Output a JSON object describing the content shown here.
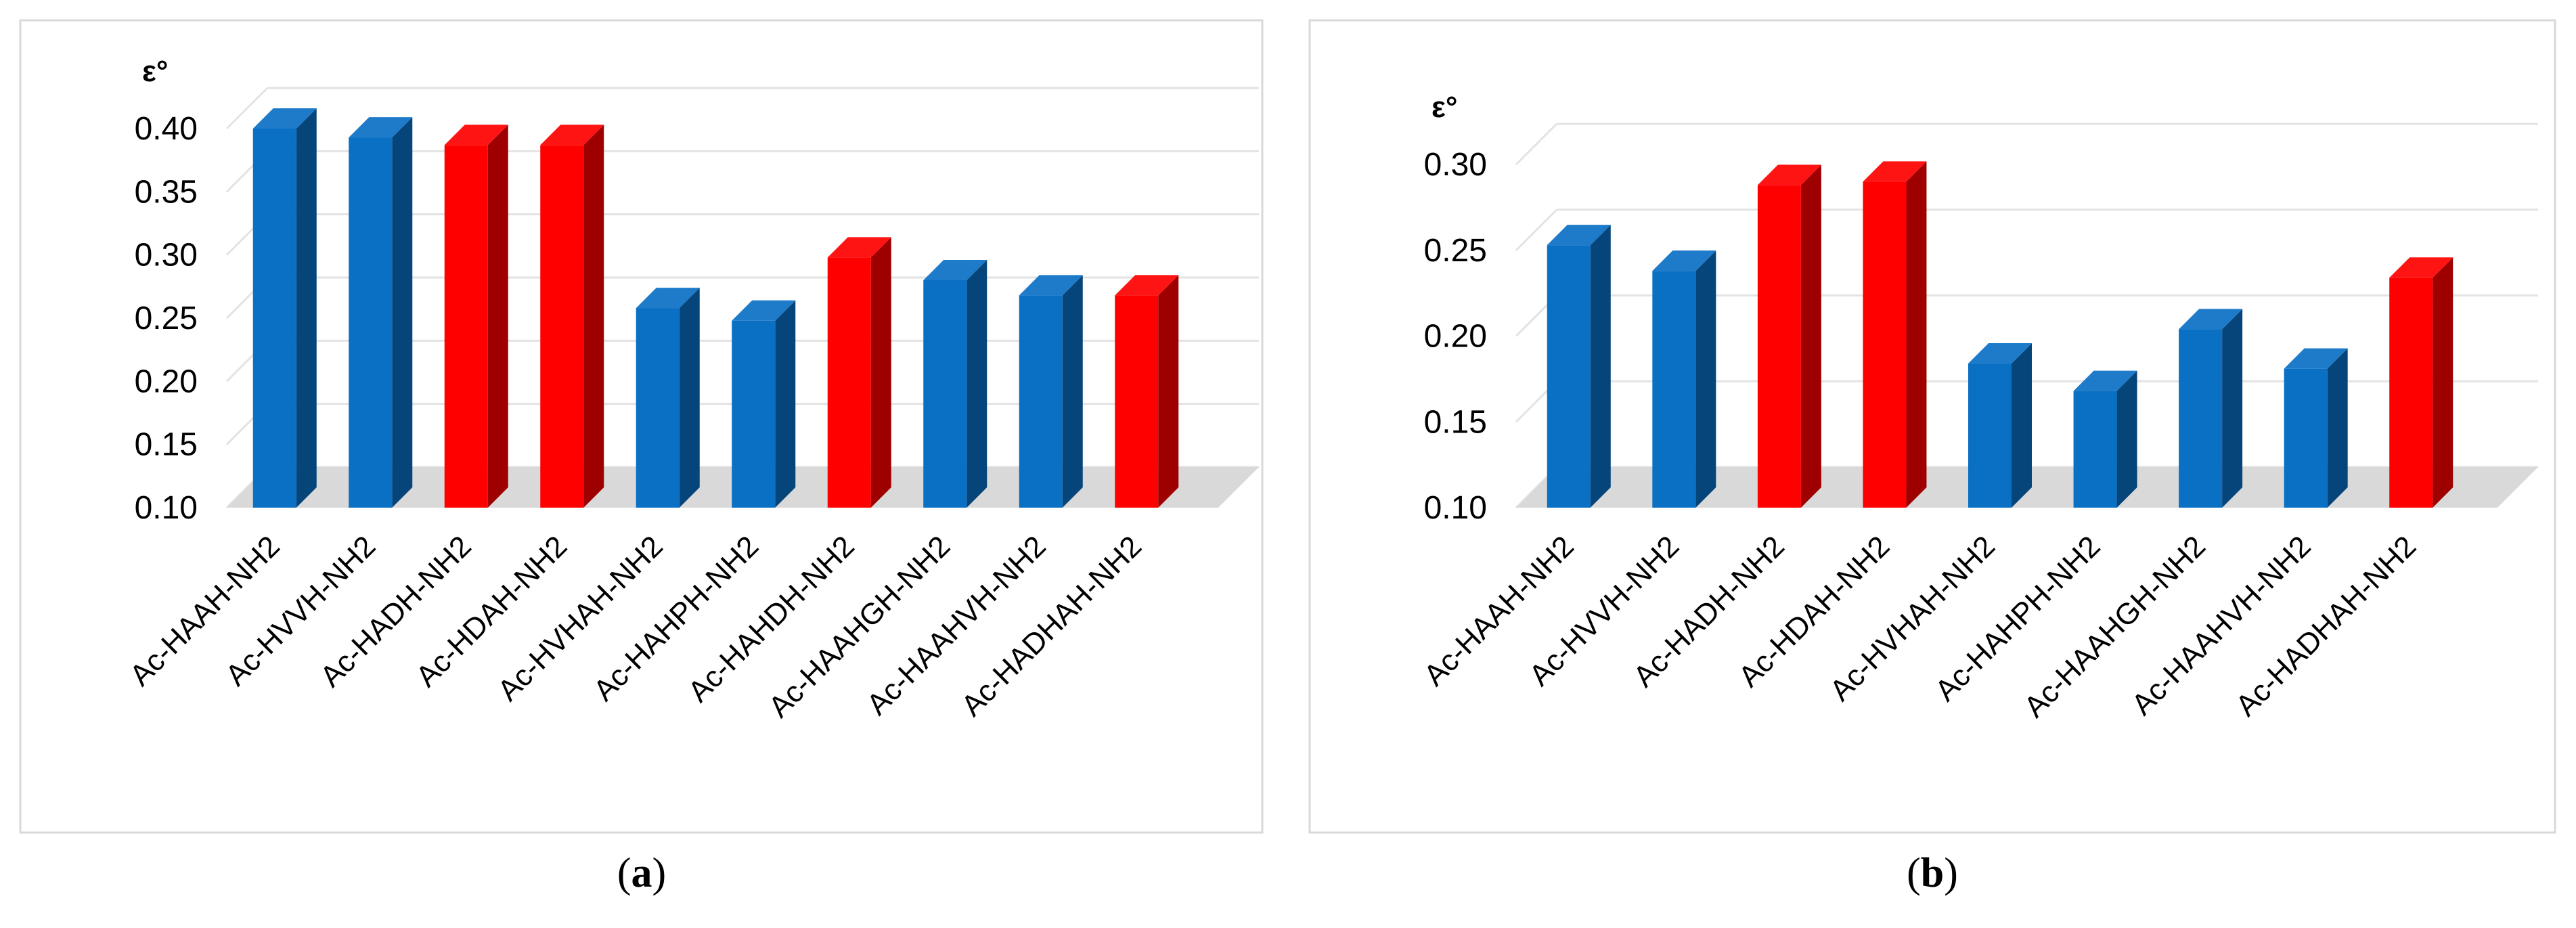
{
  "colors": {
    "blue": "#0a70c4",
    "red": "#ff0000"
  },
  "chart_data": [
    {
      "type": "bar",
      "panel_label": "a",
      "ylabel": "ε°",
      "ylim": [
        0.1,
        0.4
      ],
      "yticks": [
        "0.10",
        "0.15",
        "0.20",
        "0.25",
        "0.30",
        "0.35",
        "0.40"
      ],
      "grid": true,
      "categories": [
        "Ac-HAAH-NH2",
        "Ac-HVVH-NH2",
        "Ac-HADH-NH2",
        "Ac-HDAH-NH2",
        "Ac-HVHAH-NH2",
        "Ac-HAHPH-NH2",
        "Ac-HAHDH-NH2",
        "Ac-HAAHGH-NH2",
        "Ac-HAAHVH-NH2",
        "Ac-HADHAH-NH2"
      ],
      "values": [
        0.4,
        0.393,
        0.387,
        0.387,
        0.258,
        0.248,
        0.298,
        0.28,
        0.268,
        0.268
      ],
      "bar_colors": [
        "blue",
        "blue",
        "red",
        "red",
        "blue",
        "blue",
        "red",
        "blue",
        "blue",
        "red"
      ]
    },
    {
      "type": "bar",
      "panel_label": "b",
      "ylabel": "ε°",
      "ylim": [
        0.1,
        0.3
      ],
      "yticks": [
        "0.10",
        "0.15",
        "0.20",
        "0.25",
        "0.30"
      ],
      "grid": true,
      "categories": [
        "Ac-HAAH-NH2",
        "Ac-HVVH-NH2",
        "Ac-HADH-NH2",
        "Ac-HDAH-NH2",
        "Ac-HVHAH-NH2",
        "Ac-HAHPH-NH2",
        "Ac-HAAHGH-NH2",
        "Ac-HAAHVH-NH2",
        "Ac-HADHAH-NH2"
      ],
      "values": [
        0.253,
        0.238,
        0.288,
        0.29,
        0.184,
        0.168,
        0.204,
        0.181,
        0.234
      ],
      "bar_colors": [
        "blue",
        "blue",
        "red",
        "red",
        "blue",
        "blue",
        "blue",
        "blue",
        "red"
      ]
    }
  ]
}
